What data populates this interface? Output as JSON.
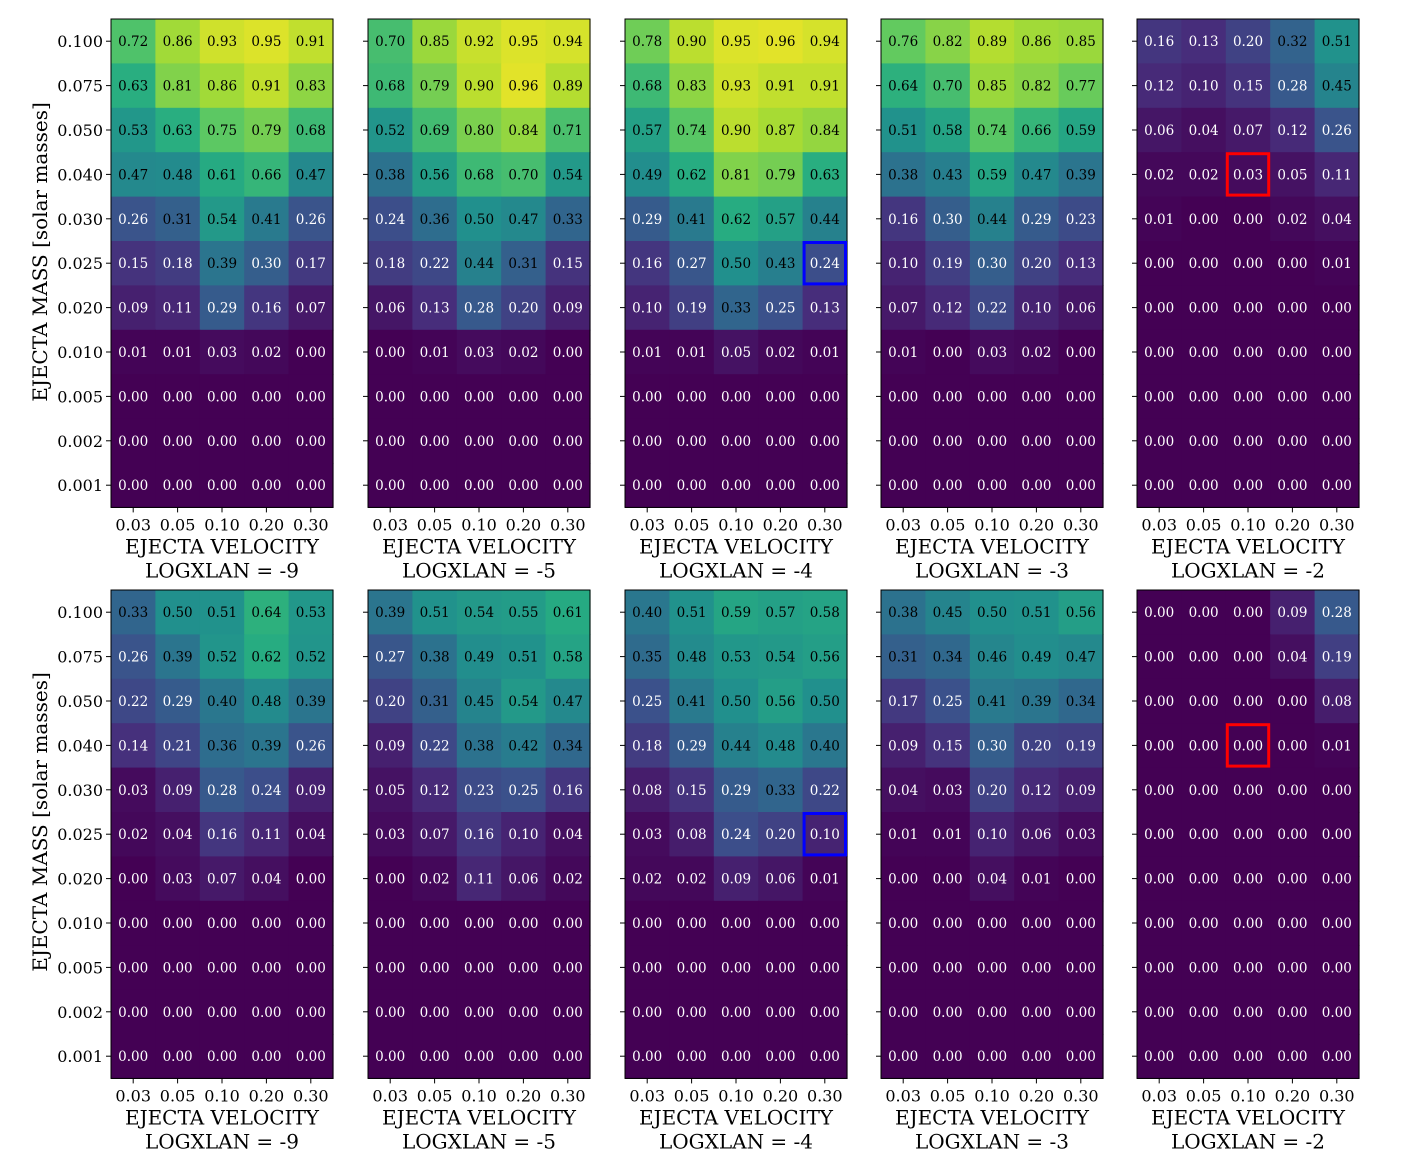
{
  "figure": {
    "ylabel": "EJECTA MASS [solar masses]",
    "xlabel": "EJECTA VELOCITY"
  },
  "chart_data": {
    "type": "heatmap",
    "colormap": "viridis",
    "value_range": [
      0,
      1
    ],
    "x_categories": [
      "0.03",
      "0.05",
      "0.10",
      "0.20",
      "0.30"
    ],
    "y_categories": [
      "0.100",
      "0.075",
      "0.050",
      "0.040",
      "0.030",
      "0.025",
      "0.020",
      "0.010",
      "0.005",
      "0.002",
      "0.001"
    ],
    "xlabel": "EJECTA VELOCITY",
    "ylabel": "EJECTA MASS [solar masses]",
    "highlight_colors": {
      "blue": "#0000ff",
      "red": "#ff0000"
    },
    "panels": [
      {
        "row": 0,
        "col": 0,
        "subtitle": "LOGXLAN = -9",
        "values": [
          [
            0.72,
            0.86,
            0.93,
            0.95,
            0.91
          ],
          [
            0.63,
            0.81,
            0.86,
            0.91,
            0.83
          ],
          [
            0.53,
            0.63,
            0.75,
            0.79,
            0.68
          ],
          [
            0.47,
            0.48,
            0.61,
            0.66,
            0.47
          ],
          [
            0.26,
            0.31,
            0.54,
            0.41,
            0.26
          ],
          [
            0.15,
            0.18,
            0.39,
            0.3,
            0.17
          ],
          [
            0.09,
            0.11,
            0.29,
            0.16,
            0.07
          ],
          [
            0.01,
            0.01,
            0.03,
            0.02,
            0.0
          ],
          [
            0.0,
            0.0,
            0.0,
            0.0,
            0.0
          ],
          [
            0.0,
            0.0,
            0.0,
            0.0,
            0.0
          ],
          [
            0.0,
            0.0,
            0.0,
            0.0,
            0.0
          ]
        ]
      },
      {
        "row": 0,
        "col": 1,
        "subtitle": "LOGXLAN = -5",
        "values": [
          [
            0.7,
            0.85,
            0.92,
            0.95,
            0.94
          ],
          [
            0.68,
            0.79,
            0.9,
            0.96,
            0.89
          ],
          [
            0.52,
            0.69,
            0.8,
            0.84,
            0.71
          ],
          [
            0.38,
            0.56,
            0.68,
            0.7,
            0.54
          ],
          [
            0.24,
            0.36,
            0.5,
            0.47,
            0.33
          ],
          [
            0.18,
            0.22,
            0.44,
            0.31,
            0.15
          ],
          [
            0.06,
            0.13,
            0.28,
            0.2,
            0.09
          ],
          [
            0.0,
            0.01,
            0.03,
            0.02,
            0.0
          ],
          [
            0.0,
            0.0,
            0.0,
            0.0,
            0.0
          ],
          [
            0.0,
            0.0,
            0.0,
            0.0,
            0.0
          ],
          [
            0.0,
            0.0,
            0.0,
            0.0,
            0.0
          ]
        ]
      },
      {
        "row": 0,
        "col": 2,
        "subtitle": "LOGXLAN = -4",
        "highlight": {
          "x": "0.30",
          "y": "0.025",
          "color": "blue"
        },
        "values": [
          [
            0.78,
            0.9,
            0.95,
            0.96,
            0.94
          ],
          [
            0.68,
            0.83,
            0.93,
            0.91,
            0.91
          ],
          [
            0.57,
            0.74,
            0.9,
            0.87,
            0.84
          ],
          [
            0.49,
            0.62,
            0.81,
            0.79,
            0.63
          ],
          [
            0.29,
            0.41,
            0.62,
            0.57,
            0.44
          ],
          [
            0.16,
            0.27,
            0.5,
            0.43,
            0.24
          ],
          [
            0.1,
            0.19,
            0.33,
            0.25,
            0.13
          ],
          [
            0.01,
            0.01,
            0.05,
            0.02,
            0.01
          ],
          [
            0.0,
            0.0,
            0.0,
            0.0,
            0.0
          ],
          [
            0.0,
            0.0,
            0.0,
            0.0,
            0.0
          ],
          [
            0.0,
            0.0,
            0.0,
            0.0,
            0.0
          ]
        ]
      },
      {
        "row": 0,
        "col": 3,
        "subtitle": "LOGXLAN = -3",
        "values": [
          [
            0.76,
            0.82,
            0.89,
            0.86,
            0.85
          ],
          [
            0.64,
            0.7,
            0.85,
            0.82,
            0.77
          ],
          [
            0.51,
            0.58,
            0.74,
            0.66,
            0.59
          ],
          [
            0.38,
            0.43,
            0.59,
            0.47,
            0.39
          ],
          [
            0.16,
            0.3,
            0.44,
            0.29,
            0.23
          ],
          [
            0.1,
            0.19,
            0.3,
            0.2,
            0.13
          ],
          [
            0.07,
            0.12,
            0.22,
            0.1,
            0.06
          ],
          [
            0.01,
            0.0,
            0.03,
            0.02,
            0.0
          ],
          [
            0.0,
            0.0,
            0.0,
            0.0,
            0.0
          ],
          [
            0.0,
            0.0,
            0.0,
            0.0,
            0.0
          ],
          [
            0.0,
            0.0,
            0.0,
            0.0,
            0.0
          ]
        ]
      },
      {
        "row": 0,
        "col": 4,
        "subtitle": "LOGXLAN = -2",
        "highlight": {
          "x": "0.10",
          "y": "0.040",
          "color": "red"
        },
        "values": [
          [
            0.16,
            0.13,
            0.2,
            0.32,
            0.51
          ],
          [
            0.12,
            0.1,
            0.15,
            0.28,
            0.45
          ],
          [
            0.06,
            0.04,
            0.07,
            0.12,
            0.26
          ],
          [
            0.02,
            0.02,
            0.03,
            0.05,
            0.11
          ],
          [
            0.01,
            0.0,
            0.0,
            0.02,
            0.04
          ],
          [
            0.0,
            0.0,
            0.0,
            0.0,
            0.01
          ],
          [
            0.0,
            0.0,
            0.0,
            0.0,
            0.0
          ],
          [
            0.0,
            0.0,
            0.0,
            0.0,
            0.0
          ],
          [
            0.0,
            0.0,
            0.0,
            0.0,
            0.0
          ],
          [
            0.0,
            0.0,
            0.0,
            0.0,
            0.0
          ],
          [
            0.0,
            0.0,
            0.0,
            0.0,
            0.0
          ]
        ]
      },
      {
        "row": 1,
        "col": 0,
        "subtitle": "LOGXLAN = -9",
        "values": [
          [
            0.33,
            0.5,
            0.51,
            0.64,
            0.53
          ],
          [
            0.26,
            0.39,
            0.52,
            0.62,
            0.52
          ],
          [
            0.22,
            0.29,
            0.4,
            0.48,
            0.39
          ],
          [
            0.14,
            0.21,
            0.36,
            0.39,
            0.26
          ],
          [
            0.03,
            0.09,
            0.28,
            0.24,
            0.09
          ],
          [
            0.02,
            0.04,
            0.16,
            0.11,
            0.04
          ],
          [
            0.0,
            0.03,
            0.07,
            0.04,
            0.0
          ],
          [
            0.0,
            0.0,
            0.0,
            0.0,
            0.0
          ],
          [
            0.0,
            0.0,
            0.0,
            0.0,
            0.0
          ],
          [
            0.0,
            0.0,
            0.0,
            0.0,
            0.0
          ],
          [
            0.0,
            0.0,
            0.0,
            0.0,
            0.0
          ]
        ]
      },
      {
        "row": 1,
        "col": 1,
        "subtitle": "LOGXLAN = -5",
        "values": [
          [
            0.39,
            0.51,
            0.54,
            0.55,
            0.61
          ],
          [
            0.27,
            0.38,
            0.49,
            0.51,
            0.58
          ],
          [
            0.2,
            0.31,
            0.45,
            0.54,
            0.47
          ],
          [
            0.09,
            0.22,
            0.38,
            0.42,
            0.34
          ],
          [
            0.05,
            0.12,
            0.23,
            0.25,
            0.16
          ],
          [
            0.03,
            0.07,
            0.16,
            0.1,
            0.04
          ],
          [
            0.0,
            0.02,
            0.11,
            0.06,
            0.02
          ],
          [
            0.0,
            0.0,
            0.0,
            0.0,
            0.0
          ],
          [
            0.0,
            0.0,
            0.0,
            0.0,
            0.0
          ],
          [
            0.0,
            0.0,
            0.0,
            0.0,
            0.0
          ],
          [
            0.0,
            0.0,
            0.0,
            0.0,
            0.0
          ]
        ]
      },
      {
        "row": 1,
        "col": 2,
        "subtitle": "LOGXLAN = -4",
        "highlight": {
          "x": "0.30",
          "y": "0.025",
          "color": "blue"
        },
        "values": [
          [
            0.4,
            0.51,
            0.59,
            0.57,
            0.58
          ],
          [
            0.35,
            0.48,
            0.53,
            0.54,
            0.56
          ],
          [
            0.25,
            0.41,
            0.5,
            0.56,
            0.5
          ],
          [
            0.18,
            0.29,
            0.44,
            0.48,
            0.4
          ],
          [
            0.08,
            0.15,
            0.29,
            0.33,
            0.22
          ],
          [
            0.03,
            0.08,
            0.24,
            0.2,
            0.1
          ],
          [
            0.02,
            0.02,
            0.09,
            0.06,
            0.01
          ],
          [
            0.0,
            0.0,
            0.0,
            0.0,
            0.0
          ],
          [
            0.0,
            0.0,
            0.0,
            0.0,
            0.0
          ],
          [
            0.0,
            0.0,
            0.0,
            0.0,
            0.0
          ],
          [
            0.0,
            0.0,
            0.0,
            0.0,
            0.0
          ]
        ]
      },
      {
        "row": 1,
        "col": 3,
        "subtitle": "LOGXLAN = -3",
        "values": [
          [
            0.38,
            0.45,
            0.5,
            0.51,
            0.56
          ],
          [
            0.31,
            0.34,
            0.46,
            0.49,
            0.47
          ],
          [
            0.17,
            0.25,
            0.41,
            0.39,
            0.34
          ],
          [
            0.09,
            0.15,
            0.3,
            0.2,
            0.19
          ],
          [
            0.04,
            0.03,
            0.2,
            0.12,
            0.09
          ],
          [
            0.01,
            0.01,
            0.1,
            0.06,
            0.03
          ],
          [
            0.0,
            0.0,
            0.04,
            0.01,
            0.0
          ],
          [
            0.0,
            0.0,
            0.0,
            0.0,
            0.0
          ],
          [
            0.0,
            0.0,
            0.0,
            0.0,
            0.0
          ],
          [
            0.0,
            0.0,
            0.0,
            0.0,
            0.0
          ],
          [
            0.0,
            0.0,
            0.0,
            0.0,
            0.0
          ]
        ]
      },
      {
        "row": 1,
        "col": 4,
        "subtitle": "LOGXLAN = -2",
        "highlight": {
          "x": "0.10",
          "y": "0.040",
          "color": "red"
        },
        "values": [
          [
            0.0,
            0.0,
            0.0,
            0.09,
            0.28
          ],
          [
            0.0,
            0.0,
            0.0,
            0.04,
            0.19
          ],
          [
            0.0,
            0.0,
            0.0,
            0.0,
            0.08
          ],
          [
            0.0,
            0.0,
            0.0,
            0.0,
            0.01
          ],
          [
            0.0,
            0.0,
            0.0,
            0.0,
            0.0
          ],
          [
            0.0,
            0.0,
            0.0,
            0.0,
            0.0
          ],
          [
            0.0,
            0.0,
            0.0,
            0.0,
            0.0
          ],
          [
            0.0,
            0.0,
            0.0,
            0.0,
            0.0
          ],
          [
            0.0,
            0.0,
            0.0,
            0.0,
            0.0
          ],
          [
            0.0,
            0.0,
            0.0,
            0.0,
            0.0
          ],
          [
            0.0,
            0.0,
            0.0,
            0.0,
            0.0
          ]
        ]
      }
    ]
  }
}
